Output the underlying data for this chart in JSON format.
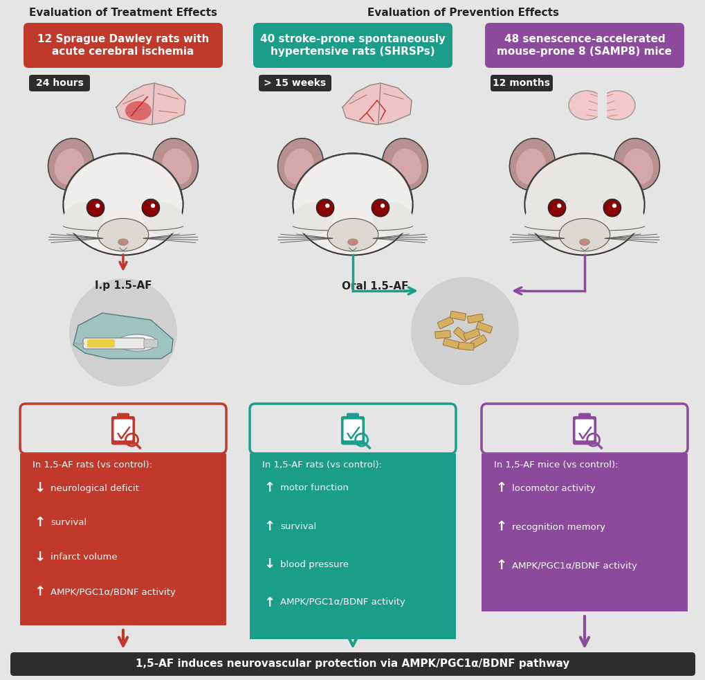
{
  "bg_color": "#e5e5e5",
  "col1_color": "#c0392b",
  "col2_color": "#1a9e8a",
  "col3_color": "#8b4a9c",
  "dark_bar_color": "#2d2d2d",
  "white": "#ffffff",
  "title1_text": "Evaluation of Treatment Effects",
  "title2_text": "Evaluation of Prevention Effects",
  "box1_text": "12 Sprague Dawley rats with\nacute cerebral ischemia",
  "box2_text": "40 stroke-prone spontaneously\nhypertensive rats (SHRSPs)",
  "box3_text": "48 senescence-accelerated\nmouse-prone 8 (SAMP8) mice",
  "time1": "24 hours",
  "time2": "> 15 weeks",
  "time3": "12 months",
  "route1": "I.p 1.5-AF",
  "route2": "Oral 1.5-AF",
  "label1": "In 1,5-AF rats (vs control):",
  "label2": "In 1,5-AF rats (vs control):",
  "label3": "In 1,5-AF mice (vs control):",
  "effects1": [
    {
      "arrow": "down",
      "text": "neurological deficit"
    },
    {
      "arrow": "up",
      "text": "survival"
    },
    {
      "arrow": "down",
      "text": "infarct volume"
    },
    {
      "arrow": "up",
      "text": "AMPK/PGC1α/BDNF activity"
    }
  ],
  "effects2": [
    {
      "arrow": "up",
      "text": "motor function"
    },
    {
      "arrow": "up",
      "text": "survival"
    },
    {
      "arrow": "down",
      "text": "blood pressure"
    },
    {
      "arrow": "up",
      "text": "AMPK/PGC1α/BDNF activity"
    }
  ],
  "effects3": [
    {
      "arrow": "up",
      "text": "locomotor activity"
    },
    {
      "arrow": "up",
      "text": "recognition memory"
    },
    {
      "arrow": "up",
      "text": "AMPK/PGC1α/BDNF activity"
    }
  ],
  "bottom_text": "1,5-AF induces neurovascular protection via AMPK/PGC1α/BDNF pathway"
}
